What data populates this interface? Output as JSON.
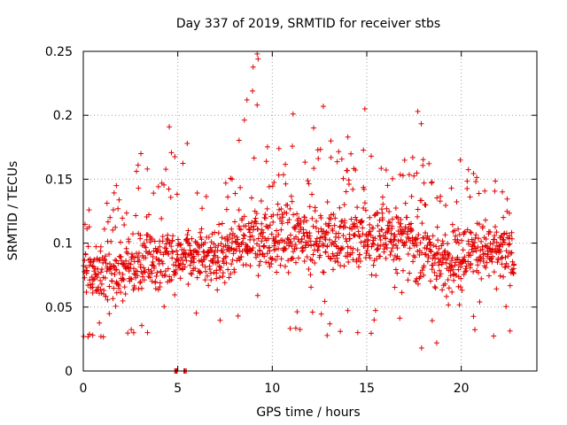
{
  "chart_data": {
    "type": "scatter",
    "title": "Day 337 of 2019, SRMTID for receiver stbs",
    "xlabel": "GPS time / hours",
    "ylabel": "SRMTID / TECUs",
    "xlim": [
      0,
      24
    ],
    "ylim": [
      0,
      0.25
    ],
    "x_ticks": [
      "0",
      "5",
      "10",
      "15",
      "20"
    ],
    "y_ticks": [
      "0",
      "0.05",
      "0.1",
      "0.15",
      "0.2",
      "0.25"
    ],
    "x_tick_values": [
      0,
      5,
      10,
      15,
      20
    ],
    "y_tick_values": [
      0,
      0.05,
      0.1,
      0.15,
      0.2,
      0.25
    ],
    "grid": true,
    "marker": "+",
    "series": [
      {
        "name": "SRMTID",
        "color": "#e00000",
        "time_start": 0.0,
        "time_end": 22.8,
        "point_count": 1500,
        "band_envelope": {
          "hours": [
            0,
            1,
            2,
            3,
            4,
            5,
            6,
            7,
            8,
            9,
            10,
            11,
            12,
            13,
            14,
            15,
            16,
            17,
            18,
            19,
            20,
            21,
            22,
            23
          ],
          "typical_low": [
            0.05,
            0.045,
            0.045,
            0.05,
            0.055,
            0.06,
            0.06,
            0.055,
            0.06,
            0.065,
            0.07,
            0.07,
            0.07,
            0.07,
            0.065,
            0.07,
            0.07,
            0.065,
            0.06,
            0.05,
            0.055,
            0.06,
            0.06,
            0.06
          ],
          "typical_high": [
            0.11,
            0.11,
            0.11,
            0.12,
            0.12,
            0.12,
            0.12,
            0.12,
            0.13,
            0.14,
            0.14,
            0.14,
            0.14,
            0.14,
            0.14,
            0.14,
            0.14,
            0.14,
            0.13,
            0.12,
            0.13,
            0.13,
            0.12,
            0.12
          ],
          "peak": [
            0.12,
            0.14,
            0.145,
            0.17,
            0.15,
            0.19,
            0.145,
            0.13,
            0.17,
            0.245,
            0.16,
            0.2,
            0.205,
            0.18,
            0.185,
            0.205,
            0.16,
            0.17,
            0.2,
            0.13,
            0.165,
            0.15,
            0.15,
            0.12
          ]
        },
        "outlier_points": [
          [
            9.2,
            0.248
          ],
          [
            9.25,
            0.244
          ],
          [
            9.2,
            0.208
          ],
          [
            12.7,
            0.207
          ],
          [
            14.9,
            0.205
          ],
          [
            11.1,
            0.201
          ],
          [
            17.7,
            0.203
          ],
          [
            4.55,
            0.191
          ],
          [
            14.0,
            0.183
          ],
          [
            5.5,
            0.178
          ],
          [
            19.95,
            0.165
          ],
          [
            3.05,
            0.17
          ],
          [
            2.9,
            0.161
          ],
          [
            1.75,
            0.145
          ],
          [
            17.9,
            0.018
          ],
          [
            18.7,
            0.022
          ],
          [
            0.02,
            0.027
          ],
          [
            0.5,
            0.028
          ],
          [
            13.6,
            0.031
          ],
          [
            3.4,
            0.03
          ]
        ],
        "zero_points": [
          [
            4.9,
            0.0
          ],
          [
            5.4,
            0.0
          ]
        ]
      }
    ]
  }
}
